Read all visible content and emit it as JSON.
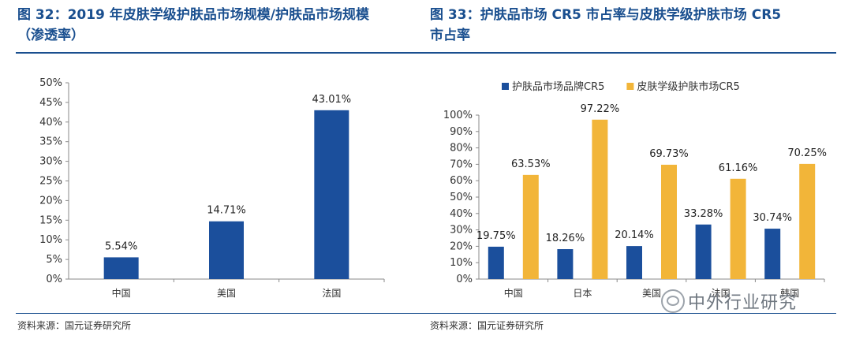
{
  "figures": [
    {
      "caption_line1": "图 32：2019 年皮肤学级护肤品市场规模/护肤品市场规模",
      "caption_line2": "（渗透率）",
      "source": "资料来源：国元证券研究所"
    },
    {
      "caption_line1": "图 33：护肤品市场 CR5 市占率与皮肤学级护肤市场 CR5",
      "caption_line2": "市占率",
      "source": "资料来源：国元证券研究所"
    }
  ],
  "watermark": {
    "text": "中外行业研究",
    "icon": "wechat-icon"
  },
  "colors": {
    "blue": "#1b4f9c",
    "gold": "#f2b539",
    "caption": "#1a4f8f"
  },
  "chart_data": [
    {
      "type": "bar",
      "categories": [
        "中国",
        "美国",
        "法国"
      ],
      "series": [
        {
          "values": [
            5.54,
            14.71,
            43.01
          ],
          "labels": [
            "5.54%",
            "14.71%",
            "43.01%"
          ],
          "color": "#1b4f9c"
        }
      ],
      "ylim": [
        0,
        50
      ],
      "yticks": [
        "0%",
        "5%",
        "10%",
        "15%",
        "20%",
        "25%",
        "30%",
        "35%",
        "40%",
        "45%",
        "50%"
      ],
      "grid": false
    },
    {
      "type": "bar",
      "categories": [
        "中国",
        "日本",
        "美国",
        "法国",
        "韩国"
      ],
      "series": [
        {
          "name": "护肤品市场品牌CR5",
          "values": [
            19.75,
            18.26,
            20.14,
            33.28,
            30.74
          ],
          "labels": [
            "19.75%",
            "18.26%",
            "20.14%",
            "33.28%",
            "30.74%"
          ],
          "color": "#1b4f9c"
        },
        {
          "name": "皮肤学级护肤市场CR5",
          "values": [
            63.53,
            97.22,
            69.73,
            61.16,
            70.25
          ],
          "labels": [
            "63.53%",
            "97.22%",
            "69.73%",
            "61.16%",
            "70.25%"
          ],
          "color": "#f2b539"
        }
      ],
      "ylim": [
        0,
        100
      ],
      "yticks": [
        "0%",
        "10%",
        "20%",
        "30%",
        "40%",
        "50%",
        "60%",
        "70%",
        "80%",
        "90%",
        "100%"
      ],
      "legend": "top",
      "grid": false
    }
  ]
}
